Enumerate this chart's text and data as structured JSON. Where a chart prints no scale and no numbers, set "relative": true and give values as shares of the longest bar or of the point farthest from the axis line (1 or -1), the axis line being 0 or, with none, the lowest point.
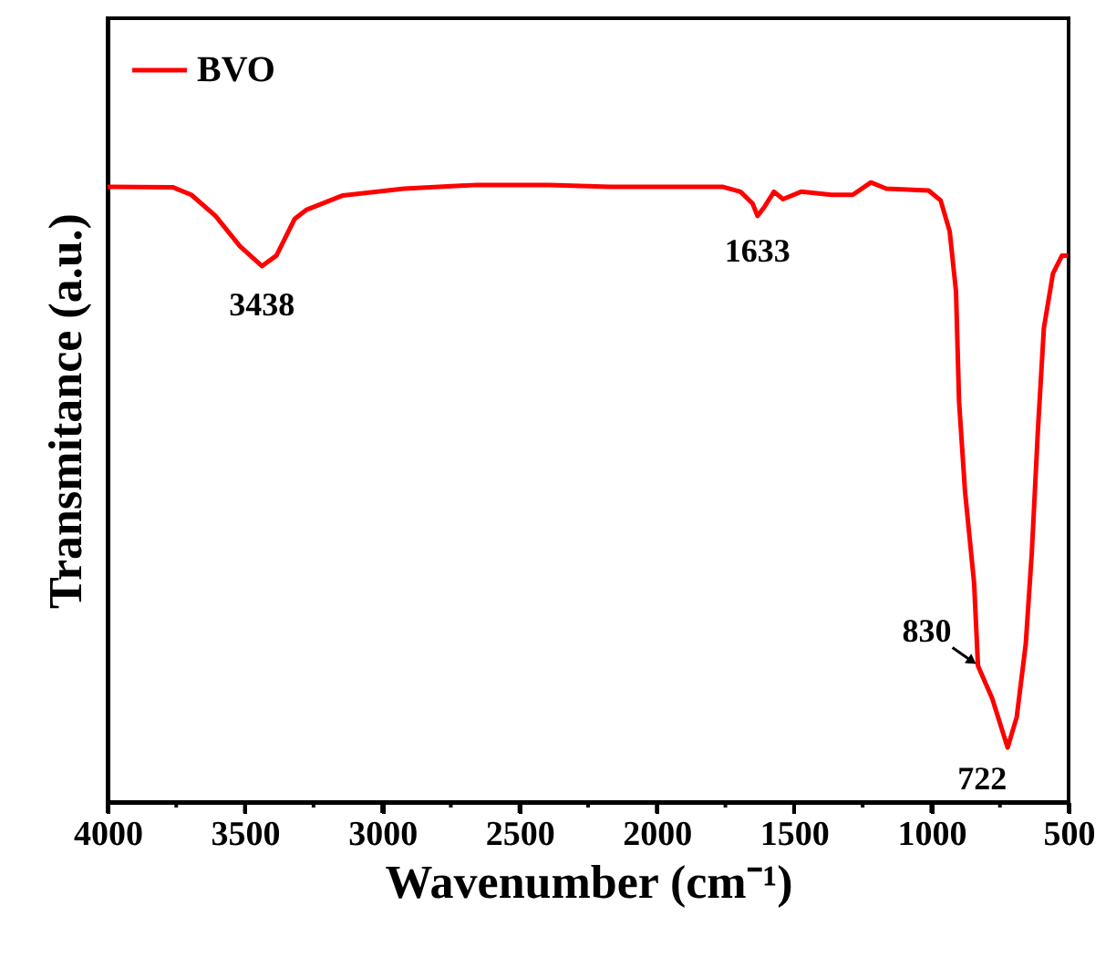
{
  "chart_data": {
    "type": "line",
    "relative": true,
    "xlabel": "Wavenumber (cm⁻¹)",
    "ylabel": "Transmitance (a.u.)",
    "xlim": [
      4000,
      500
    ],
    "xticks": [
      4000,
      {
        "value": 3750,
        "label": null
      },
      3500,
      {
        "value": 3250,
        "label": null
      },
      3000,
      {
        "value": 2750,
        "label": null
      },
      2500,
      {
        "value": 2250,
        "label": null
      },
      2000,
      {
        "value": 1750,
        "label": null
      },
      1500,
      {
        "value": 1250,
        "label": null
      },
      1000,
      {
        "value": 750,
        "label": null
      },
      500
    ],
    "tick_labels": "x",
    "grid": false,
    "legend": "top left",
    "marker": "none",
    "line_style": "solid",
    "series": [
      {
        "name": "BVO",
        "color": "#ff0000",
        "x": [
          4000,
          3761,
          3695,
          3607,
          3518,
          3438,
          3385,
          3319,
          3275,
          3143,
          2921,
          2656,
          2391,
          2170,
          1761,
          1695,
          1651,
          1633,
          1607,
          1573,
          1540,
          1474,
          1363,
          1286,
          1220,
          1164,
          1010,
          966,
          933,
          910,
          899,
          877,
          844,
          830,
          778,
          722,
          689,
          656,
          634,
          612,
          590,
          557,
          524,
          502
        ],
        "values": [
          0.993,
          0.992,
          0.98,
          0.946,
          0.897,
          0.865,
          0.882,
          0.941,
          0.956,
          0.979,
          0.99,
          0.996,
          0.996,
          0.993,
          0.993,
          0.985,
          0.966,
          0.946,
          0.961,
          0.985,
          0.973,
          0.985,
          0.98,
          0.98,
          1.0,
          0.99,
          0.987,
          0.971,
          0.921,
          0.824,
          0.647,
          0.5,
          0.353,
          0.22,
          0.167,
          0.088,
          0.137,
          0.255,
          0.402,
          0.598,
          0.765,
          0.853,
          0.882,
          0.882
        ]
      }
    ],
    "annotations": [
      {
        "text": "3438",
        "x": 3438,
        "y": 0.865
      },
      {
        "text": "1633",
        "x": 1633,
        "y": 0.946
      },
      {
        "text": "830",
        "x": 830,
        "y": 0.22
      },
      {
        "text": "722",
        "x": 722,
        "y": 0.088
      }
    ]
  }
}
